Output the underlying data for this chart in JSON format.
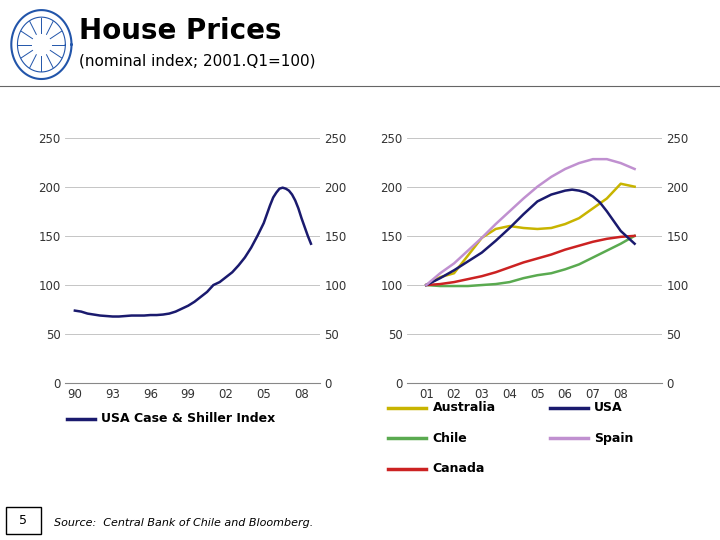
{
  "title": "House Prices",
  "subtitle": "(nominal index; 2001.Q1=100)",
  "background": "#ffffff",
  "left_xlabel_years": [
    "90",
    "93",
    "96",
    "99",
    "02",
    "05",
    "08"
  ],
  "left_xticks": [
    1990,
    1993,
    1996,
    1999,
    2002,
    2005,
    2008
  ],
  "left_yticks": [
    0,
    50,
    100,
    150,
    200,
    250
  ],
  "left_ylim": [
    0,
    280
  ],
  "left_xlim": [
    1989.2,
    2009.5
  ],
  "usa_cs_x": [
    1990.0,
    1990.5,
    1991.0,
    1991.5,
    1992.0,
    1992.5,
    1993.0,
    1993.5,
    1994.0,
    1994.5,
    1995.0,
    1995.5,
    1996.0,
    1996.5,
    1997.0,
    1997.5,
    1998.0,
    1998.5,
    1999.0,
    1999.5,
    2000.0,
    2000.5,
    2001.0,
    2001.5,
    2002.0,
    2002.5,
    2003.0,
    2003.5,
    2004.0,
    2004.5,
    2005.0,
    2005.25,
    2005.5,
    2005.75,
    2006.0,
    2006.25,
    2006.5,
    2006.75,
    2007.0,
    2007.25,
    2007.5,
    2007.75,
    2008.0,
    2008.5,
    2008.75
  ],
  "usa_cs_y": [
    74,
    73,
    71,
    70,
    69,
    68.5,
    68,
    68,
    68.5,
    69,
    69,
    69,
    69.5,
    69.5,
    70,
    71,
    73,
    76,
    79,
    83,
    88,
    93,
    100,
    103,
    108,
    113,
    120,
    128,
    138,
    150,
    163,
    172,
    181,
    189,
    194,
    198,
    199,
    198,
    196,
    192,
    186,
    178,
    168,
    150,
    142
  ],
  "usa_cs_color": "#1a1a6e",
  "right_xlabel_years": [
    "01",
    "02",
    "03",
    "04",
    "05",
    "06",
    "07",
    "08"
  ],
  "right_xticks": [
    2001,
    2002,
    2003,
    2004,
    2005,
    2006,
    2007,
    2008
  ],
  "right_yticks": [
    0,
    50,
    100,
    150,
    200,
    250
  ],
  "right_ylim": [
    0,
    280
  ],
  "right_xlim": [
    2000.3,
    2009.5
  ],
  "australia_x": [
    2001.0,
    2001.5,
    2002.0,
    2002.5,
    2003.0,
    2003.5,
    2004.0,
    2004.5,
    2005.0,
    2005.5,
    2006.0,
    2006.5,
    2007.0,
    2007.5,
    2008.0,
    2008.5
  ],
  "australia_y": [
    100,
    108,
    112,
    130,
    148,
    157,
    160,
    158,
    157,
    158,
    162,
    168,
    178,
    188,
    203,
    200
  ],
  "australia_color": "#c8b400",
  "chile_x": [
    2001.0,
    2001.5,
    2002.0,
    2002.5,
    2003.0,
    2003.5,
    2004.0,
    2004.5,
    2005.0,
    2005.5,
    2006.0,
    2006.5,
    2007.0,
    2007.5,
    2008.0,
    2008.5
  ],
  "chile_y": [
    100,
    99,
    99,
    99,
    100,
    101,
    103,
    107,
    110,
    112,
    116,
    121,
    128,
    135,
    142,
    150
  ],
  "chile_color": "#5aaa50",
  "canada_x": [
    2001.0,
    2001.5,
    2002.0,
    2002.5,
    2003.0,
    2003.5,
    2004.0,
    2004.5,
    2005.0,
    2005.5,
    2006.0,
    2006.5,
    2007.0,
    2007.5,
    2008.0,
    2008.5
  ],
  "canada_y": [
    100,
    101,
    103,
    106,
    109,
    113,
    118,
    123,
    127,
    131,
    136,
    140,
    144,
    147,
    149,
    150
  ],
  "canada_color": "#cc2222",
  "usa_x": [
    2001.0,
    2001.5,
    2002.0,
    2002.5,
    2003.0,
    2003.5,
    2004.0,
    2004.5,
    2005.0,
    2005.5,
    2006.0,
    2006.25,
    2006.5,
    2006.75,
    2007.0,
    2007.25,
    2007.5,
    2007.75,
    2008.0,
    2008.5
  ],
  "usa_y": [
    100,
    107,
    115,
    124,
    133,
    145,
    158,
    172,
    185,
    192,
    196,
    197,
    196,
    194,
    190,
    184,
    175,
    165,
    155,
    142
  ],
  "usa_color": "#1a1a6e",
  "spain_x": [
    2001.0,
    2001.5,
    2002.0,
    2002.5,
    2003.0,
    2003.5,
    2004.0,
    2004.5,
    2005.0,
    2005.5,
    2006.0,
    2006.5,
    2007.0,
    2007.5,
    2008.0,
    2008.5
  ],
  "spain_y": [
    100,
    112,
    122,
    135,
    148,
    162,
    175,
    188,
    200,
    210,
    218,
    224,
    228,
    228,
    224,
    218
  ],
  "spain_color": "#c090d0",
  "left_legend_label": "USA Case & Shiller Index",
  "right_legend_left": [
    {
      "label": "Australia",
      "color": "#c8b400"
    },
    {
      "label": "Chile",
      "color": "#5aaa50"
    },
    {
      "label": "Canada",
      "color": "#cc2222"
    }
  ],
  "right_legend_right": [
    {
      "label": "USA",
      "color": "#1a1a6e"
    },
    {
      "label": "Spain",
      "color": "#c090d0"
    }
  ],
  "source_text": "Source:  Central Bank of Chile and Bloomberg.",
  "page_num": "5",
  "linewidth": 1.8,
  "grid_color": "#bbbbbb",
  "axis_color": "#888888",
  "tick_color": "#333333"
}
